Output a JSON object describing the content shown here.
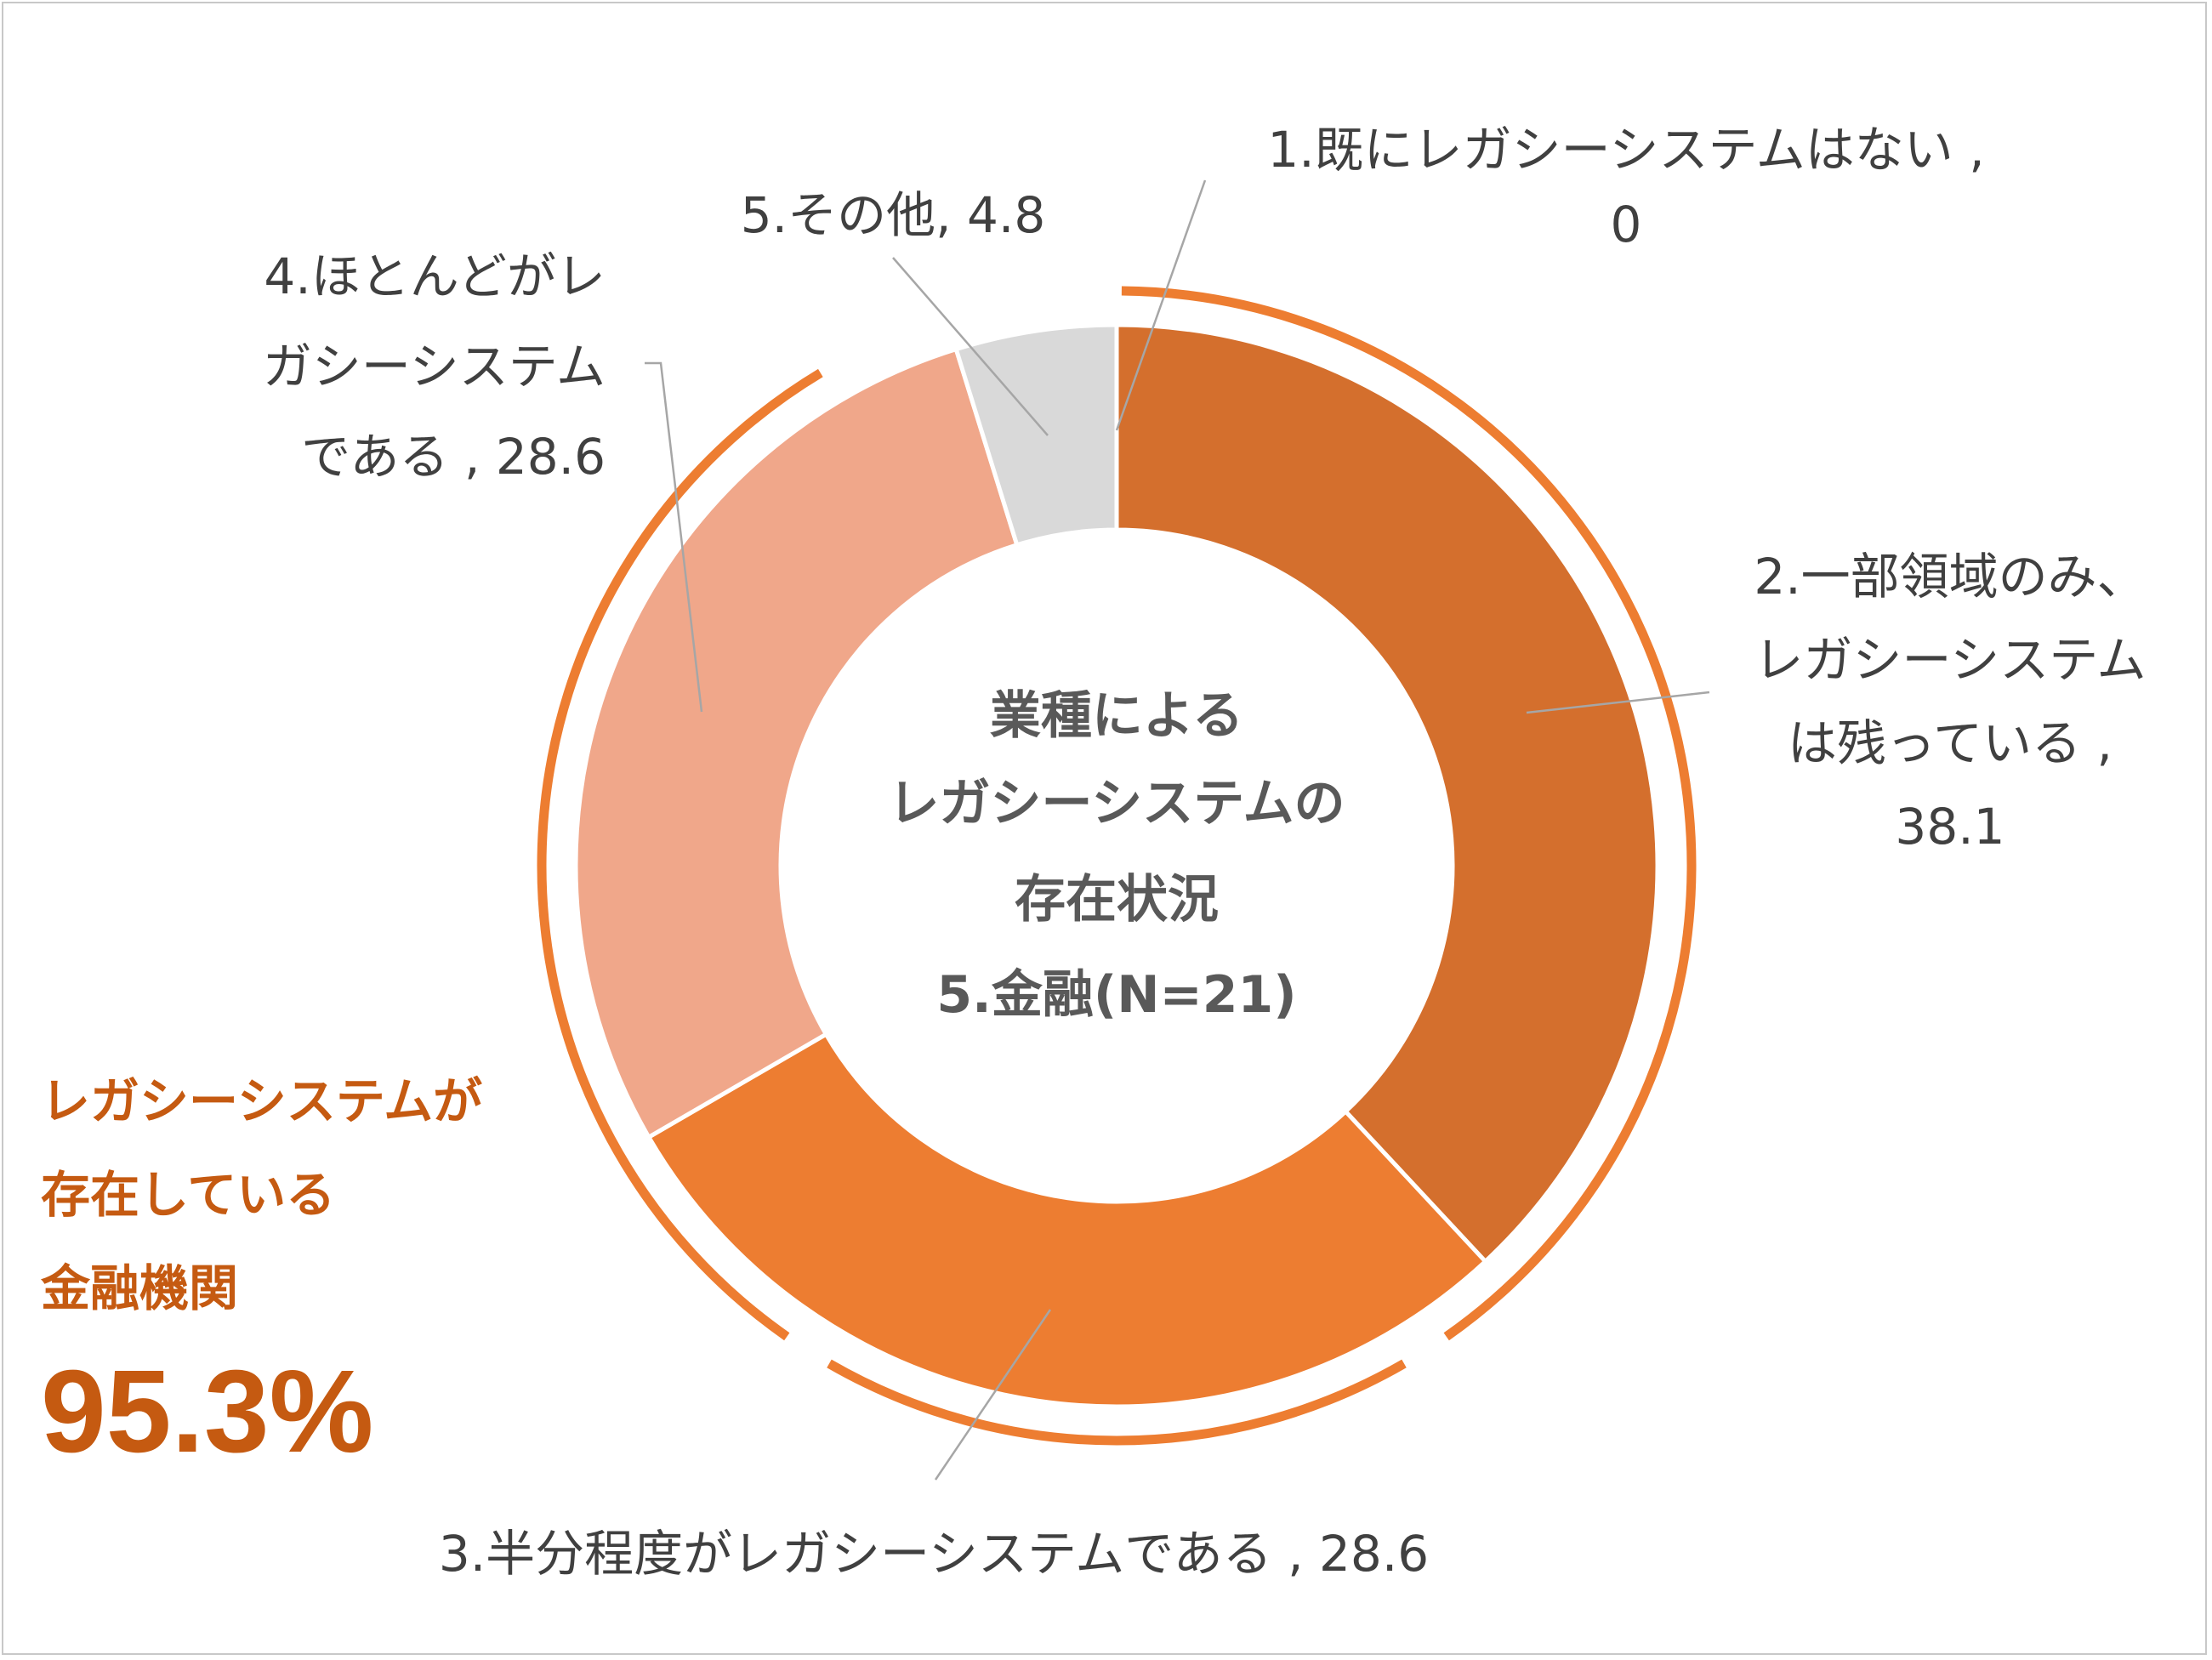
{
  "chart_data": {
    "type": "pie",
    "center_title": [
      "業種による",
      "レガシーシステムの",
      "存在状況",
      "5.金融(N=21)"
    ],
    "slices": [
      {
        "name": "1.既にレガシーシステムはない",
        "value": 0,
        "color": "#d46f2d",
        "label_lines": [
          "1.既にレガシーシステムはない ,",
          "0"
        ]
      },
      {
        "name": "2.一部領域のみ、レガシーシステムは残っている",
        "value": 38.1,
        "color": "#d46f2d",
        "label_lines": [
          "2.一部領域のみ、",
          "レガシーシステム",
          "は残っている ,",
          "38.1"
        ]
      },
      {
        "name": "3.半分程度がレガシーシステムである",
        "value": 28.6,
        "color": "#ed7d31",
        "label_lines": [
          "3.半分程度がレガシーシステムである , 28.6"
        ]
      },
      {
        "name": "4.ほとんどがレガシーシステムである",
        "value": 28.6,
        "color": "#f0a78a",
        "label_lines": [
          "4.ほとんどがレ",
          "ガシーシステム",
          "である , 28.6"
        ]
      },
      {
        "name": "5.その他",
        "value": 4.8,
        "color": "#d9d9d9",
        "label_lines": [
          "5.その他, 4.8"
        ]
      }
    ],
    "highlight_arc_color": "#ed7d31"
  },
  "note": {
    "lines": [
      "レガシーシステムが",
      "存在している",
      "金融機関"
    ],
    "percent": "95.3%",
    "color": "#c55a11"
  }
}
